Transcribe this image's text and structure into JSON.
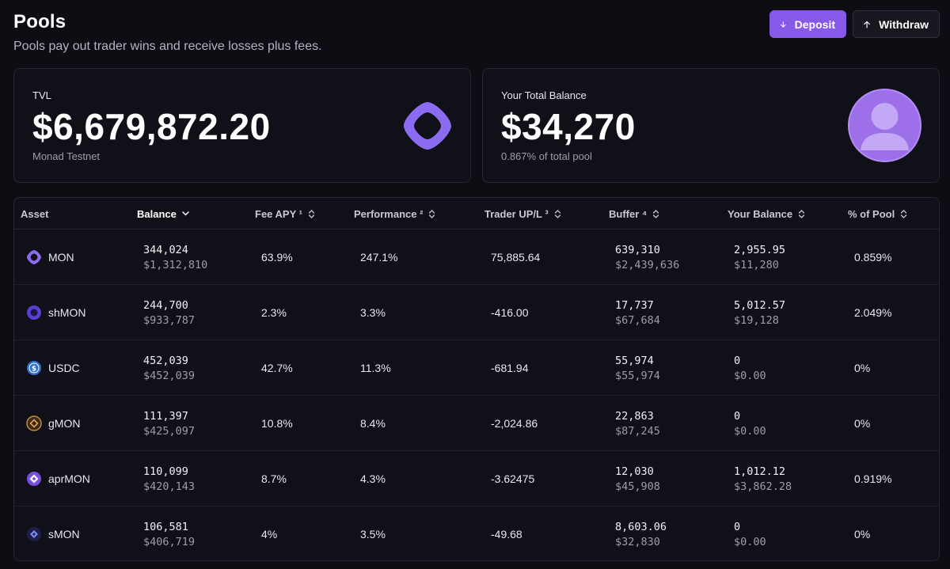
{
  "header": {
    "title": "Pools",
    "subtitle": "Pools pay out trader wins and receive losses plus fees.",
    "deposit_label": "Deposit",
    "withdraw_label": "Withdraw"
  },
  "tvl_card": {
    "label": "TVL",
    "value": "$6,679,872.20",
    "network": "Monad Testnet",
    "logo_icon": "monad-logo-icon"
  },
  "balance_card": {
    "label": "Your Total Balance",
    "value": "$34,270",
    "share": "0.867% of total pool",
    "avatar_icon": "user-avatar-icon"
  },
  "table": {
    "columns": [
      "Asset",
      "Balance",
      "Fee APY ¹",
      "Performance ²",
      "Trader UP/L ³",
      "Buffer ⁴",
      "Your Balance",
      "% of Pool"
    ],
    "rows": [
      {
        "asset": "MON",
        "icon": "mon-icon",
        "balance": "344,024",
        "balance_usd": "$1,312,810",
        "fee_apy": "63.9%",
        "performance": "247.1%",
        "trader_upl": "75,885.64",
        "buffer": "639,310",
        "buffer_usd": "$2,439,636",
        "your_balance": "2,955.95",
        "your_balance_usd": "$11,280",
        "pct_pool": "0.859%"
      },
      {
        "asset": "shMON",
        "icon": "shmon-icon",
        "balance": "244,700",
        "balance_usd": "$933,787",
        "fee_apy": "2.3%",
        "performance": "3.3%",
        "trader_upl": "-416.00",
        "buffer": "17,737",
        "buffer_usd": "$67,684",
        "your_balance": "5,012.57",
        "your_balance_usd": "$19,128",
        "pct_pool": "2.049%"
      },
      {
        "asset": "USDC",
        "icon": "usdc-icon",
        "balance": "452,039",
        "balance_usd": "$452,039",
        "fee_apy": "42.7%",
        "performance": "11.3%",
        "trader_upl": "-681.94",
        "buffer": "55,974",
        "buffer_usd": "$55,974",
        "your_balance": "0",
        "your_balance_usd": "$0.00",
        "pct_pool": "0%"
      },
      {
        "asset": "gMON",
        "icon": "gmon-icon",
        "balance": "111,397",
        "balance_usd": "$425,097",
        "fee_apy": "10.8%",
        "performance": "8.4%",
        "trader_upl": "-2,024.86",
        "buffer": "22,863",
        "buffer_usd": "$87,245",
        "your_balance": "0",
        "your_balance_usd": "$0.00",
        "pct_pool": "0%"
      },
      {
        "asset": "aprMON",
        "icon": "aprmon-icon",
        "balance": "110,099",
        "balance_usd": "$420,143",
        "fee_apy": "8.7%",
        "performance": "4.3%",
        "trader_upl": "-3.62475",
        "buffer": "12,030",
        "buffer_usd": "$45,908",
        "your_balance": "1,012.12",
        "your_balance_usd": "$3,862.28",
        "pct_pool": "0.919%"
      },
      {
        "asset": "sMON",
        "icon": "smon-icon",
        "balance": "106,581",
        "balance_usd": "$406,719",
        "fee_apy": "4%",
        "performance": "3.5%",
        "trader_upl": "-49.68",
        "buffer": "8,603.06",
        "buffer_usd": "$32,830",
        "your_balance": "0",
        "your_balance_usd": "$0.00",
        "pct_pool": "0%"
      }
    ]
  },
  "colors": {
    "background": "#0d0d13",
    "accent": "#8759e8",
    "card_border": "#262632",
    "muted_text": "#9d9dac"
  }
}
